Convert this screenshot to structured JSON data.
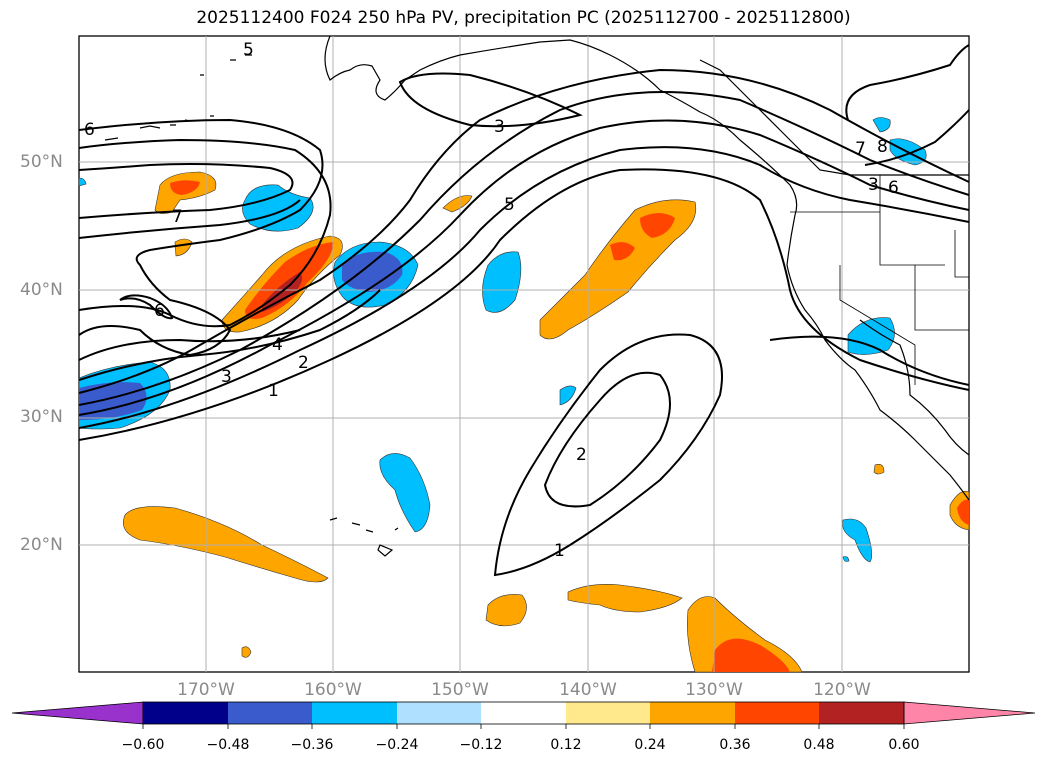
{
  "title": "2025112400 F024 250 hPa PV, precipitation PC (2025112700 - 2025112800)",
  "lat_labels": [
    "50°N",
    "40°N",
    "30°N",
    "20°N"
  ],
  "lon_labels": [
    "170°W",
    "160°W",
    "150°W",
    "140°W",
    "130°W",
    "120°W"
  ],
  "contour_labels": [
    "5",
    "6",
    "7",
    "3",
    "5",
    "6",
    "4",
    "3",
    "2",
    "1",
    "7",
    "8",
    "3",
    "6",
    "2",
    "1"
  ],
  "colorbar": {
    "ticks": [
      "−0.60",
      "−0.48",
      "−0.36",
      "−0.24",
      "−0.12",
      "0.12",
      "0.24",
      "0.36",
      "0.48",
      "0.60"
    ],
    "colors": [
      "#9932cc",
      "#00008b",
      "#3a5bcc",
      "#00bfff",
      "#b0e0ff",
      "#ffffff",
      "#ffe98c",
      "#ffa500",
      "#ff4500",
      "#b22222",
      "#ff85a8"
    ]
  },
  "colors": {
    "orange": "#ffa500",
    "red_orange": "#ff4500",
    "dark_red": "#b22222",
    "light_blue": "#00bfff",
    "royal_blue": "#3a5bcc",
    "grid": "#b0b0b0",
    "coast": "#000000"
  }
}
